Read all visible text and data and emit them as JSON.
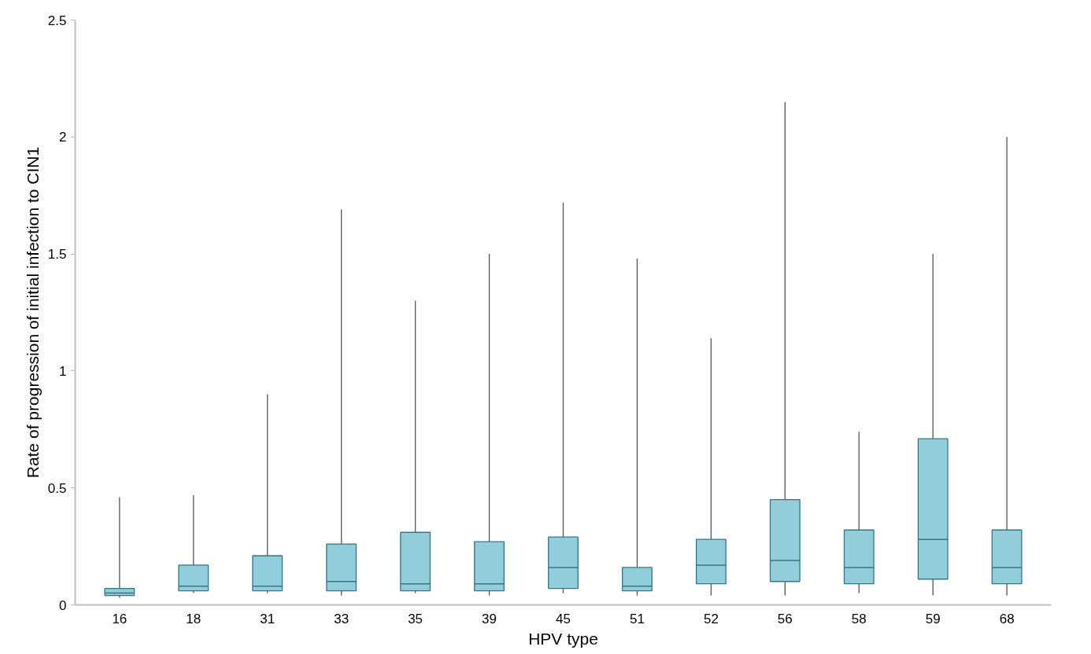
{
  "chart_data": {
    "type": "box",
    "xlabel": "HPV type",
    "ylabel": "Rate of progression of initial infection to CIN1",
    "categories": [
      "16",
      "18",
      "31",
      "33",
      "35",
      "39",
      "45",
      "51",
      "52",
      "56",
      "58",
      "59",
      "68"
    ],
    "series": [
      {
        "color": "#92cddc",
        "boxes": [
          {
            "low": 0.03,
            "q1": 0.04,
            "median": 0.05,
            "q3": 0.07,
            "high": 0.46
          },
          {
            "low": 0.05,
            "q1": 0.06,
            "median": 0.08,
            "q3": 0.17,
            "high": 0.47
          },
          {
            "low": 0.05,
            "q1": 0.06,
            "median": 0.08,
            "q3": 0.21,
            "high": 0.9
          },
          {
            "low": 0.04,
            "q1": 0.06,
            "median": 0.1,
            "q3": 0.26,
            "high": 1.69
          },
          {
            "low": 0.05,
            "q1": 0.06,
            "median": 0.09,
            "q3": 0.31,
            "high": 1.3
          },
          {
            "low": 0.04,
            "q1": 0.06,
            "median": 0.09,
            "q3": 0.27,
            "high": 1.5
          },
          {
            "low": 0.05,
            "q1": 0.07,
            "median": 0.16,
            "q3": 0.29,
            "high": 1.72
          },
          {
            "low": 0.04,
            "q1": 0.06,
            "median": 0.08,
            "q3": 0.16,
            "high": 1.48
          },
          {
            "low": 0.04,
            "q1": 0.09,
            "median": 0.17,
            "q3": 0.28,
            "high": 1.14
          },
          {
            "low": 0.04,
            "q1": 0.1,
            "median": 0.19,
            "q3": 0.45,
            "high": 2.15
          },
          {
            "low": 0.05,
            "q1": 0.09,
            "median": 0.16,
            "q3": 0.32,
            "high": 0.74
          },
          {
            "low": 0.04,
            "q1": 0.11,
            "median": 0.28,
            "q3": 0.71,
            "high": 1.5
          },
          {
            "low": 0.04,
            "q1": 0.09,
            "median": 0.16,
            "q3": 0.32,
            "high": 2.0
          }
        ]
      }
    ],
    "ylim": [
      0,
      2.5
    ],
    "yticks": [
      0,
      0.5,
      1,
      1.5,
      2,
      2.5
    ],
    "grid": false
  }
}
